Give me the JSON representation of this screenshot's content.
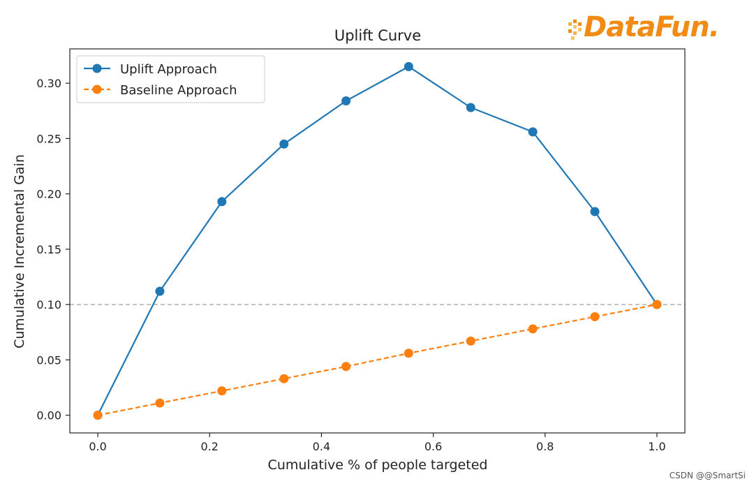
{
  "chart_data": {
    "type": "line",
    "title": "Uplift Curve",
    "xlabel": "Cumulative % of people targeted",
    "ylabel": "Cumulative Incremental Gain",
    "xlim": [
      -0.05,
      1.05
    ],
    "ylim": [
      -0.016,
      0.331
    ],
    "xticks": [
      0.0,
      0.2,
      0.4,
      0.6,
      0.8,
      1.0
    ],
    "xtick_labels": [
      "0.0",
      "0.2",
      "0.4",
      "0.6",
      "0.8",
      "1.0"
    ],
    "yticks": [
      0.0,
      0.05,
      0.1,
      0.15,
      0.2,
      0.25,
      0.3
    ],
    "ytick_labels": [
      "0.00",
      "0.05",
      "0.10",
      "0.15",
      "0.20",
      "0.25",
      "0.30"
    ],
    "reference_line": {
      "y": 0.1,
      "style": "dashed",
      "color": "#a0a0a0"
    },
    "legend_position": "top-left",
    "series": [
      {
        "name": "Uplift Approach",
        "color": "#1f77b4",
        "style": "solid",
        "x": [
          0.0,
          0.111,
          0.222,
          0.333,
          0.444,
          0.556,
          0.667,
          0.778,
          0.889,
          1.0
        ],
        "y": [
          0.0,
          0.112,
          0.193,
          0.245,
          0.284,
          0.315,
          0.278,
          0.256,
          0.184,
          0.1
        ]
      },
      {
        "name": "Baseline Approach",
        "color": "#ff7f0e",
        "style": "dashed",
        "x": [
          0.0,
          0.111,
          0.222,
          0.333,
          0.444,
          0.556,
          0.667,
          0.778,
          0.889,
          1.0
        ],
        "y": [
          0.0,
          0.011,
          0.022,
          0.033,
          0.044,
          0.056,
          0.067,
          0.078,
          0.089,
          0.1
        ]
      }
    ]
  },
  "logo": {
    "text": "DataFun.",
    "color": "#f08c16"
  },
  "watermark": "CSDN @@SmartSi"
}
